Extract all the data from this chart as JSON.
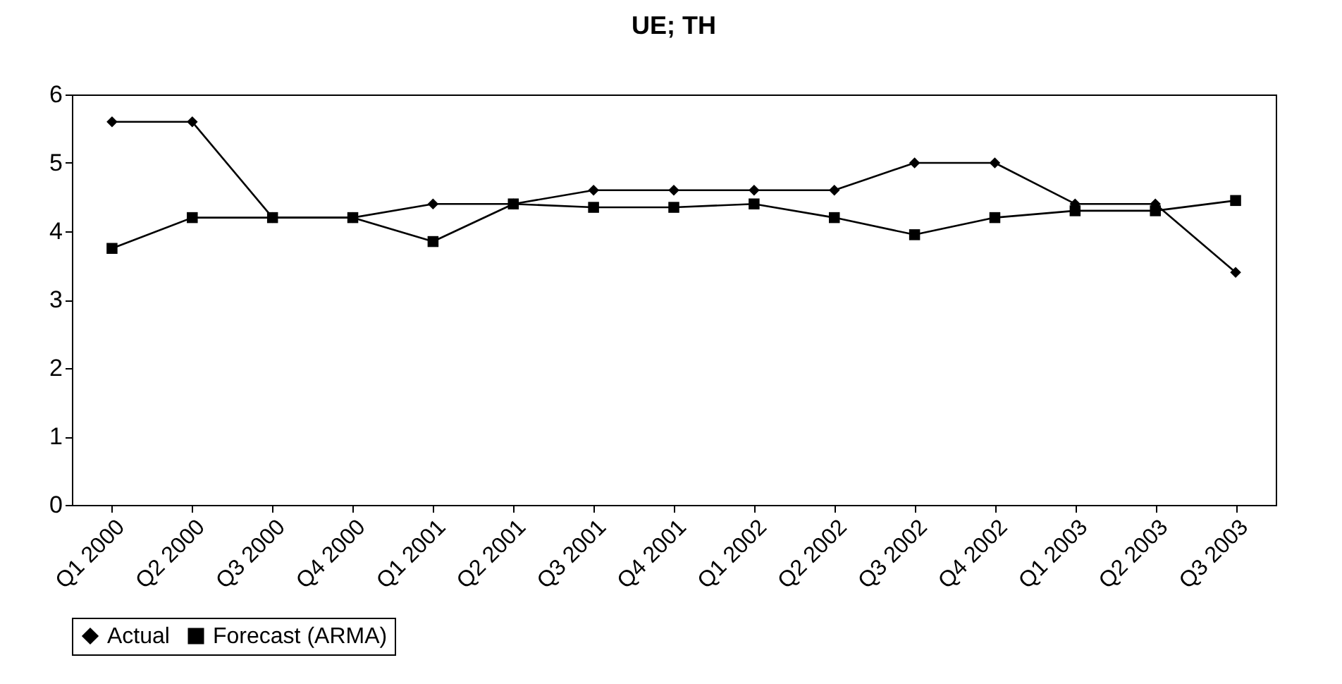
{
  "chart_data": {
    "type": "line",
    "title": "UE; TH",
    "categories": [
      "Q1 2000",
      "Q2 2000",
      "Q3 2000",
      "Q4 2000",
      "Q1 2001",
      "Q2 2001",
      "Q3 2001",
      "Q4 2001",
      "Q1 2002",
      "Q2 2002",
      "Q3 2002",
      "Q4 2002",
      "Q1 2003",
      "Q2 2003",
      "Q3 2003"
    ],
    "series": [
      {
        "name": "Actual",
        "color": "#000000",
        "marker": "diamond",
        "values": [
          5.6,
          5.6,
          4.2,
          4.2,
          4.4,
          4.4,
          4.6,
          4.6,
          4.6,
          4.6,
          5.0,
          5.0,
          4.4,
          4.4,
          3.4
        ]
      },
      {
        "name": "Forecast (ARMA)",
        "color": "#000000",
        "marker": "square",
        "values": [
          3.75,
          4.2,
          4.2,
          4.2,
          3.85,
          4.4,
          4.35,
          4.35,
          4.4,
          4.2,
          3.95,
          4.2,
          4.3,
          4.3,
          4.45
        ]
      }
    ],
    "ylim": [
      0,
      6
    ],
    "yticks": [
      0,
      1,
      2,
      3,
      4,
      5,
      6
    ],
    "grid": false,
    "legend": "bottom",
    "line_style": "solid"
  }
}
